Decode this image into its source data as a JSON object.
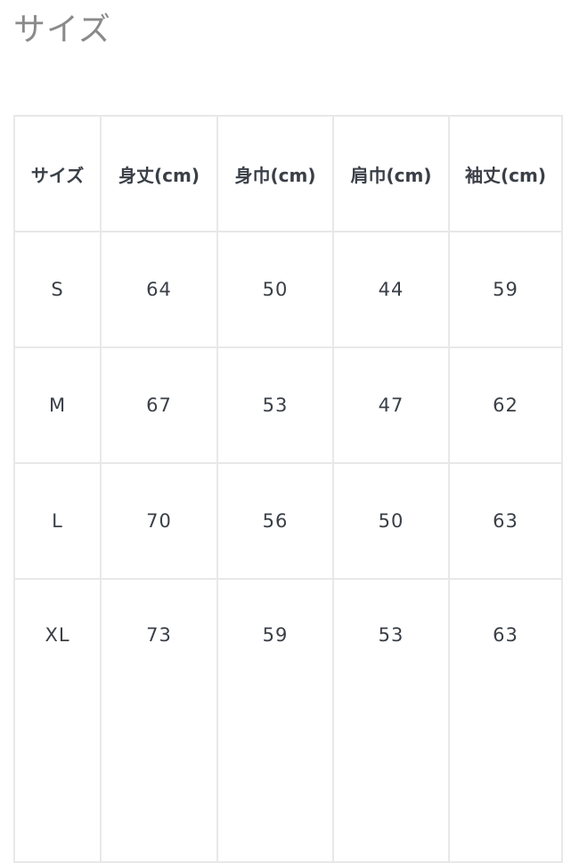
{
  "title": "サイズ",
  "table": {
    "headers": [
      "サイズ",
      "身丈(cm)",
      "身巾(cm)",
      "肩巾(cm)",
      "袖丈(cm)"
    ],
    "rows": [
      [
        "S",
        "64",
        "50",
        "44",
        "59"
      ],
      [
        "M",
        "67",
        "53",
        "47",
        "62"
      ],
      [
        "L",
        "70",
        "56",
        "50",
        "63"
      ],
      [
        "XL",
        "73",
        "59",
        "53",
        "63"
      ]
    ]
  }
}
